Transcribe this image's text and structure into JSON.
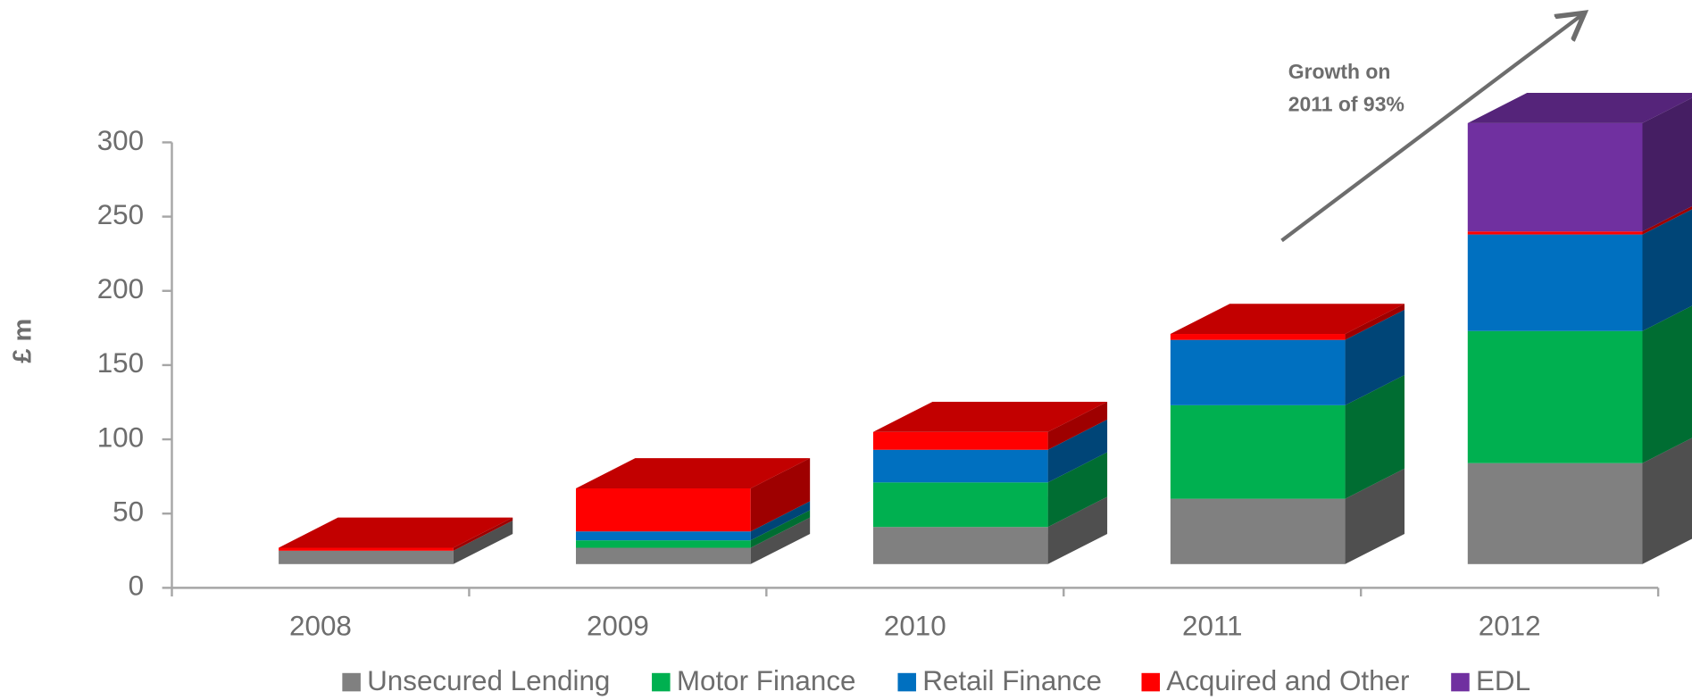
{
  "chart_data": {
    "type": "stacked_bar_3d",
    "ylabel": "£ m",
    "annotation": [
      "Growth on",
      "2011 of 93%"
    ],
    "categories": [
      "2008",
      "2009",
      "2010",
      "2011",
      "2012"
    ],
    "series": [
      {
        "name": "Unsecured Lending",
        "color": "#808080",
        "values": [
          9,
          11,
          25,
          44,
          68
        ]
      },
      {
        "name": "Motor Finance",
        "color": "#00b050",
        "values": [
          0,
          5,
          30,
          63,
          89
        ]
      },
      {
        "name": "Retail Finance",
        "color": "#0070c0",
        "values": [
          0,
          6,
          22,
          44,
          65
        ]
      },
      {
        "name": "Acquired and Other",
        "color": "#ff0000",
        "values": [
          2,
          29,
          12,
          4,
          2
        ]
      },
      {
        "name": "EDL",
        "color": "#7030a0",
        "values": [
          0,
          0,
          0,
          0,
          73
        ]
      }
    ],
    "ylim": [
      0,
      300
    ],
    "yticks": [
      0,
      50,
      100,
      150,
      200,
      250,
      300
    ],
    "legend": "bottom"
  }
}
